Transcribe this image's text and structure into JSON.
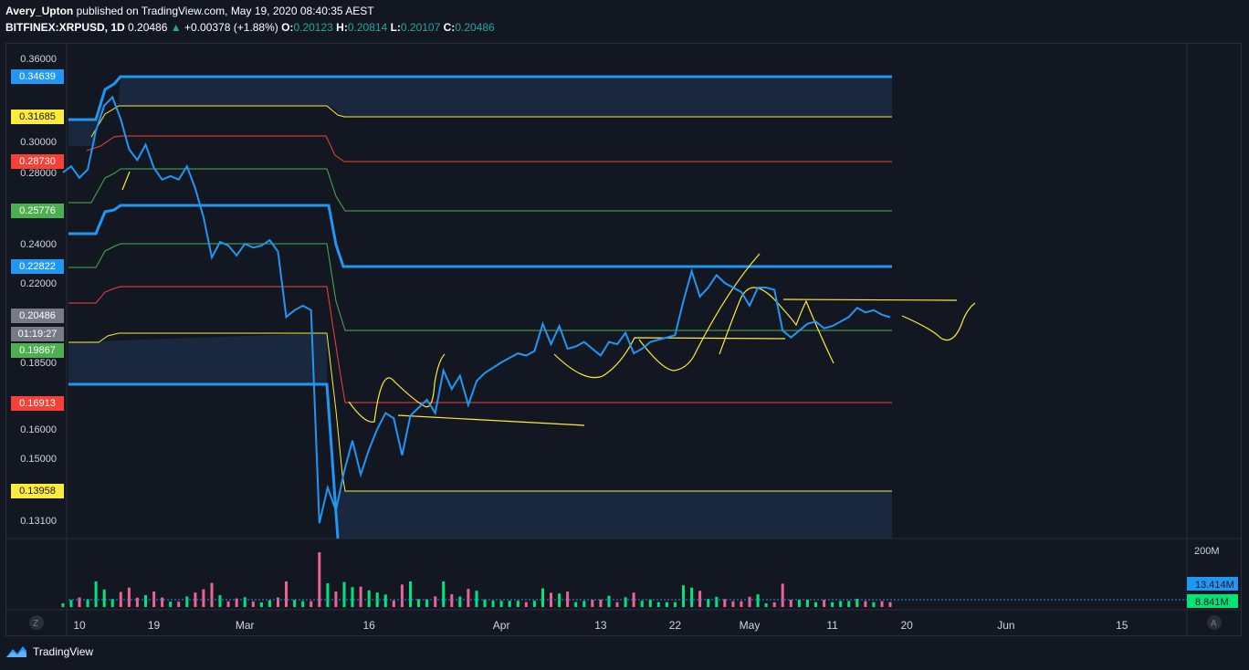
{
  "header": {
    "author": "Avery_Upton",
    "published": "published on TradingView.com, May 19, 2020 08:40:35 AEST",
    "symbol": "BITFINEX:XRPUSD, 1D",
    "last": "0.20486",
    "change": "+0.00378 (+1.88%)",
    "o_label": "O:",
    "o": "0.20123",
    "h_label": "H:",
    "h": "0.20814",
    "l_label": "L:",
    "l": "0.20107",
    "c_label": "C:",
    "c": "0.20486"
  },
  "chart_data": {
    "type": "line",
    "title": "",
    "y_ticks": [
      "0.36000",
      "0.30000",
      "0.28000",
      "0.24000",
      "0.22000",
      "0.18500",
      "0.16000",
      "0.15000",
      "0.13100"
    ],
    "x_ticks": [
      "10",
      "19",
      "Mar",
      "16",
      "Apr",
      "13",
      "22",
      "May",
      "11",
      "20",
      "Jun",
      "15"
    ],
    "price_tags": [
      {
        "label": "0.34639",
        "color": "#2196f3",
        "text": "#ffffff"
      },
      {
        "label": "0.31685",
        "color": "#ffeb3b",
        "text": "#131722"
      },
      {
        "label": "0.28730",
        "color": "#f44336",
        "text": "#ffffff"
      },
      {
        "label": "0.25776",
        "color": "#4caf50",
        "text": "#ffffff"
      },
      {
        "label": "0.22822",
        "color": "#2196f3",
        "text": "#ffffff"
      },
      {
        "label": "0.20486",
        "color": "#787b86",
        "text": "#ffffff"
      },
      {
        "label": "01:19:27",
        "color": "#787b86",
        "text": "#ffffff"
      },
      {
        "label": "0.19867",
        "color": "#4caf50",
        "text": "#ffffff"
      },
      {
        "label": "0.16913",
        "color": "#f44336",
        "text": "#ffffff"
      },
      {
        "label": "0.13958",
        "color": "#ffeb3b",
        "text": "#131722"
      }
    ],
    "series": [
      {
        "name": "XRPUSD close",
        "color": "#2196f3",
        "x": [
          "2020-02-08",
          "2020-02-09",
          "2020-02-10",
          "2020-02-11",
          "2020-02-12",
          "2020-02-13",
          "2020-02-14",
          "2020-02-15",
          "2020-02-16",
          "2020-02-17",
          "2020-02-18",
          "2020-02-19",
          "2020-02-20",
          "2020-02-21",
          "2020-02-22",
          "2020-02-23",
          "2020-02-24",
          "2020-02-25",
          "2020-02-26",
          "2020-02-27",
          "2020-02-28",
          "2020-02-29",
          "2020-03-01",
          "2020-03-02",
          "2020-03-03",
          "2020-03-04",
          "2020-03-05",
          "2020-03-06",
          "2020-03-07",
          "2020-03-08",
          "2020-03-09",
          "2020-03-10",
          "2020-03-11",
          "2020-03-12",
          "2020-03-13",
          "2020-03-14",
          "2020-03-15",
          "2020-03-16",
          "2020-03-17",
          "2020-03-18",
          "2020-03-19",
          "2020-03-20",
          "2020-03-21",
          "2020-03-22",
          "2020-03-23",
          "2020-03-24",
          "2020-03-25",
          "2020-03-26",
          "2020-03-27",
          "2020-03-28",
          "2020-03-29",
          "2020-03-30",
          "2020-03-31",
          "2020-04-01",
          "2020-04-02",
          "2020-04-03",
          "2020-04-04",
          "2020-04-05",
          "2020-04-06",
          "2020-04-07",
          "2020-04-08",
          "2020-04-09",
          "2020-04-10",
          "2020-04-11",
          "2020-04-12",
          "2020-04-13",
          "2020-04-14",
          "2020-04-15",
          "2020-04-16",
          "2020-04-17",
          "2020-04-18",
          "2020-04-19",
          "2020-04-20",
          "2020-04-21",
          "2020-04-22",
          "2020-04-23",
          "2020-04-24",
          "2020-04-25",
          "2020-04-26",
          "2020-04-27",
          "2020-04-28",
          "2020-04-29",
          "2020-04-30",
          "2020-05-01",
          "2020-05-02",
          "2020-05-03",
          "2020-05-04",
          "2020-05-05",
          "2020-05-06",
          "2020-05-07",
          "2020-05-08",
          "2020-05-09",
          "2020-05-10",
          "2020-05-11",
          "2020-05-12",
          "2020-05-13",
          "2020-05-14",
          "2020-05-15",
          "2020-05-16",
          "2020-05-17",
          "2020-05-18"
        ],
        "values": [
          0.28,
          0.284,
          0.277,
          0.282,
          0.308,
          0.326,
          0.332,
          0.316,
          0.295,
          0.288,
          0.298,
          0.283,
          0.276,
          0.278,
          0.276,
          0.284,
          0.271,
          0.255,
          0.233,
          0.241,
          0.239,
          0.234,
          0.24,
          0.238,
          0.239,
          0.242,
          0.236,
          0.205,
          0.208,
          0.21,
          0.208,
          0.13,
          0.141,
          0.134,
          0.146,
          0.156,
          0.145,
          0.153,
          0.16,
          0.166,
          0.164,
          0.151,
          0.165,
          0.168,
          0.171,
          0.166,
          0.182,
          0.175,
          0.18,
          0.169,
          0.178,
          0.181,
          0.183,
          0.185,
          0.187,
          0.189,
          0.188,
          0.19,
          0.202,
          0.193,
          0.201,
          0.191,
          0.192,
          0.194,
          0.191,
          0.188,
          0.194,
          0.193,
          0.198,
          0.189,
          0.191,
          0.194,
          0.195,
          0.196,
          0.197,
          0.212,
          0.226,
          0.214,
          0.218,
          0.224,
          0.22,
          0.218,
          0.216,
          0.21,
          0.218,
          0.218,
          0.217,
          0.199,
          0.196,
          0.199,
          0.202,
          0.203,
          0.2,
          0.201,
          0.203,
          0.205,
          0.209,
          0.207,
          0.208,
          0.206,
          0.2049
        ]
      }
    ],
    "ichimoku_levels": [
      "0.34639",
      "0.31685",
      "0.28730",
      "0.25776",
      "0.22822",
      "0.19867",
      "0.16913",
      "0.13958"
    ],
    "volume_axis": {
      "ticks": [
        "200M"
      ],
      "tags": [
        {
          "label": "13.414M",
          "color": "#2196f3"
        },
        {
          "label": "8.841M",
          "color": "#00e676"
        }
      ]
    }
  },
  "footer": {
    "brand": "TradingView"
  },
  "axis_buttons": {
    "z": "Z",
    "a": "A"
  },
  "colors": {
    "background": "#131722",
    "blue": "#2196f3",
    "yellow": "#ffeb3b",
    "red": "#f44336",
    "green": "#4caf50",
    "up": "#26a69a",
    "down": "#ef5350"
  }
}
